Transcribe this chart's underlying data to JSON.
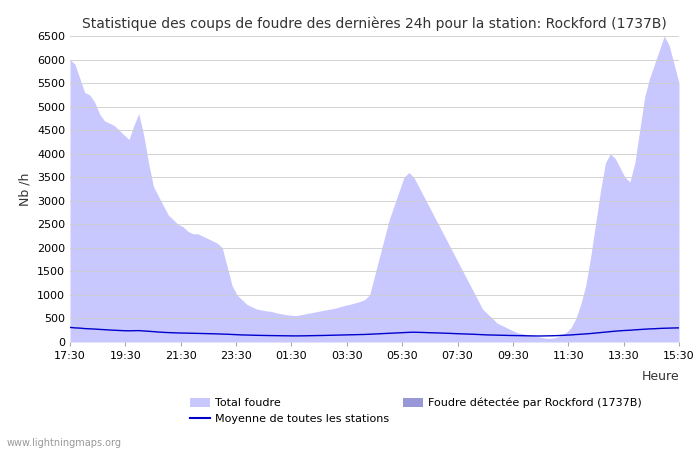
{
  "title": "Statistique des coups de foudre des dernières 24h pour la station: Rockford (1737B)",
  "ylabel": "Nb /h",
  "xlabel": "Heure",
  "watermark": "www.lightningmaps.org",
  "x_ticks": [
    "17:30",
    "19:30",
    "21:30",
    "23:30",
    "01:30",
    "03:30",
    "05:30",
    "07:30",
    "09:30",
    "11:30",
    "13:30",
    "15:30"
  ],
  "ylim": [
    0,
    6500
  ],
  "y_ticks": [
    0,
    500,
    1000,
    1500,
    2000,
    2500,
    3000,
    3500,
    4000,
    4500,
    5000,
    5500,
    6000,
    6500
  ],
  "total_foudre_color": "#c8c8ff",
  "local_foudre_color": "#9898d8",
  "moyenne_color": "#0000cc",
  "bg_color": "#ffffff",
  "grid_color": "#cccccc",
  "total_foudre_values": [
    6000,
    5900,
    5600,
    5300,
    5250,
    5100,
    4850,
    4700,
    4650,
    4600,
    4500,
    4400,
    4300,
    4600,
    4850,
    4400,
    3800,
    3300,
    3100,
    2900,
    2700,
    2600,
    2500,
    2450,
    2350,
    2300,
    2300,
    2250,
    2200,
    2150,
    2100,
    2000,
    1600,
    1200,
    1000,
    900,
    800,
    750,
    700,
    680,
    660,
    650,
    620,
    600,
    580,
    570,
    560,
    580,
    600,
    620,
    640,
    660,
    680,
    700,
    720,
    750,
    780,
    800,
    830,
    860,
    900,
    1000,
    1400,
    1800,
    2200,
    2600,
    2900,
    3200,
    3500,
    3600,
    3500,
    3300,
    3100,
    2900,
    2700,
    2500,
    2300,
    2100,
    1900,
    1700,
    1500,
    1300,
    1100,
    900,
    700,
    600,
    500,
    400,
    350,
    300,
    250,
    200,
    180,
    160,
    140,
    120,
    100,
    80,
    80,
    100,
    150,
    200,
    300,
    500,
    800,
    1200,
    1800,
    2500,
    3200,
    3800,
    4000,
    3900,
    3700,
    3500,
    3400,
    3800,
    4500,
    5200,
    5600,
    5900,
    6200,
    6500,
    6300,
    5900,
    5500
  ],
  "local_foudre_values": [
    0,
    0,
    0,
    0,
    0,
    0,
    0,
    0,
    0,
    0,
    0,
    0,
    0,
    0,
    0,
    0,
    0,
    0,
    0,
    0,
    0,
    0,
    0,
    0,
    0,
    0,
    0,
    0,
    0,
    0,
    0,
    0,
    0,
    0,
    0,
    0,
    0,
    0,
    0,
    0,
    0,
    0,
    0,
    0,
    0,
    0,
    0,
    0,
    0,
    0,
    0,
    0,
    0,
    0,
    0,
    0,
    0,
    0,
    0,
    0,
    0,
    0,
    0,
    0,
    0,
    0,
    0,
    0,
    0,
    0,
    0,
    0,
    0,
    0,
    0,
    0,
    0,
    0,
    0,
    0,
    0,
    0,
    0,
    0,
    0,
    0,
    0,
    0,
    0,
    0,
    0,
    0,
    0,
    0,
    0,
    0,
    0,
    0,
    0,
    0,
    0,
    0,
    0,
    0,
    0,
    0,
    0,
    0,
    0,
    0,
    0,
    0,
    0,
    0,
    0,
    0,
    0,
    0,
    0,
    0,
    0,
    0,
    0,
    0,
    0
  ],
  "moyenne_values": [
    310,
    300,
    295,
    285,
    280,
    275,
    268,
    262,
    255,
    250,
    245,
    240,
    238,
    240,
    242,
    235,
    228,
    220,
    212,
    205,
    200,
    196,
    192,
    190,
    188,
    185,
    183,
    180,
    178,
    175,
    172,
    168,
    165,
    160,
    155,
    150,
    148,
    145,
    142,
    140,
    138,
    136,
    135,
    133,
    132,
    130,
    130,
    130,
    132,
    134,
    136,
    138,
    140,
    143,
    145,
    148,
    150,
    153,
    155,
    158,
    160,
    165,
    170,
    175,
    180,
    185,
    190,
    195,
    200,
    205,
    208,
    205,
    202,
    198,
    195,
    192,
    188,
    185,
    180,
    176,
    172,
    168,
    165,
    160,
    155,
    150,
    148,
    145,
    143,
    140,
    138,
    136,
    134,
    132,
    130,
    128,
    128,
    130,
    132,
    135,
    140,
    145,
    150,
    158,
    165,
    172,
    180,
    190,
    200,
    210,
    220,
    230,
    238,
    245,
    250,
    258,
    265,
    272,
    278,
    282,
    288,
    292,
    295,
    298,
    300
  ],
  "n_points": 125,
  "legend_items": [
    {
      "type": "patch",
      "color": "#c8c8ff",
      "label": "Total foudre"
    },
    {
      "type": "line",
      "color": "#0000cc",
      "label": "Moyenne de toutes les stations"
    },
    {
      "type": "patch",
      "color": "#9898d8",
      "label": "Foudre détectée par Rockford (1737B)"
    }
  ]
}
